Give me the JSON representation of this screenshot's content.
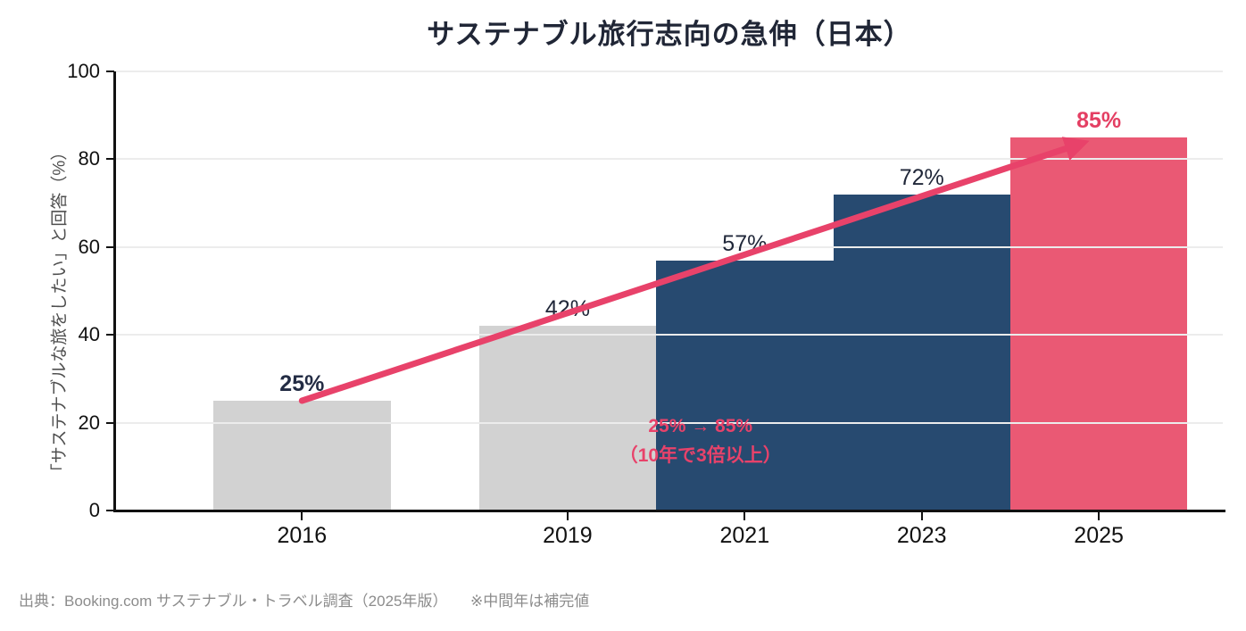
{
  "title": "サステナブル旅行志向の急伸（日本）",
  "footer": "出典：Booking.com サステナブル・トラベル調査（2025年版）　　※中間年は補完値",
  "chart_data": {
    "type": "bar",
    "title": "サステナブル旅行志向の急伸（日本）",
    "xlabel": "",
    "ylabel": "「サステナブルな旅をしたい」と回答（%）",
    "ylim": [
      0,
      100
    ],
    "xlim": [
      2013.9,
      2026.4
    ],
    "yticks": [
      0,
      20,
      40,
      60,
      80,
      100
    ],
    "grid": "horizontal, light gray, drawn over bars",
    "legend": "none",
    "categories": [
      2016,
      2019,
      2021,
      2023,
      2025
    ],
    "values": [
      25,
      42,
      57,
      72,
      85
    ],
    "bar_width_years": 2,
    "points": [
      {
        "year": 2016,
        "value": 25,
        "label": "25%",
        "bar_color": "#d2d2d2",
        "label_color": "#232c44",
        "label_bold": true
      },
      {
        "year": 2019,
        "value": 42,
        "label": "42%",
        "bar_color": "#d2d2d2",
        "label_color": "#1f2638",
        "label_bold": false
      },
      {
        "year": 2021,
        "value": 57,
        "label": "57%",
        "bar_color": "#274a70",
        "label_color": "#1f2638",
        "label_bold": false
      },
      {
        "year": 2023,
        "value": 72,
        "label": "72%",
        "bar_color": "#274a70",
        "label_color": "#1f2638",
        "label_bold": false
      },
      {
        "year": 2025,
        "value": 85,
        "label": "85%",
        "bar_color": "#ea5974",
        "label_color": "#e43f63",
        "label_bold": true
      }
    ],
    "trend_arrow": {
      "from": {
        "year": 2016,
        "value": 25
      },
      "to": {
        "year": 2024.7,
        "value": 82.9
      },
      "color": "#e8426a",
      "stroke_width": 7
    },
    "annotation": {
      "lines": [
        "25% → 85%",
        "（10年で3倍以上）"
      ],
      "color": "#e8426a",
      "x_year": 2020.5,
      "y_value": 22.6
    },
    "colors": {
      "axis": "#111111",
      "grid": "#ececec",
      "tick_label": "#111111",
      "ylabel": "#4f4f4f",
      "title": "#202636",
      "footer": "#8c8c8c",
      "bar_gray": "#d2d2d2",
      "bar_navy": "#274a70",
      "bar_pink": "#ea5974",
      "accent_pink": "#e8426a"
    }
  }
}
